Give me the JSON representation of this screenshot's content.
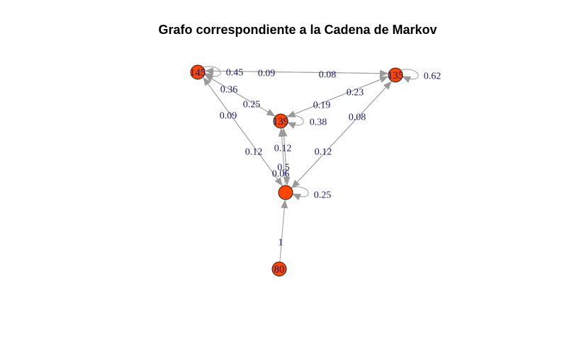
{
  "title": "Grafo correspondiente a la Cadena de Markov",
  "colors": {
    "node_fill": "#ff4500",
    "edge": "#9a9a9a",
    "label": "#1a1a66"
  },
  "nodes": [
    {
      "id": "n145",
      "label": "145"
    },
    {
      "id": "n135",
      "label": "135"
    },
    {
      "id": "n139",
      "label": "139"
    },
    {
      "id": "nc",
      "label": ""
    },
    {
      "id": "n80",
      "label": "80"
    }
  ],
  "edges": [
    {
      "id": "e145-145",
      "from": "n145",
      "to": "n145",
      "label": "0.45"
    },
    {
      "id": "e145-135",
      "from": "n145",
      "to": "n135",
      "label": "0.09"
    },
    {
      "id": "e135-145",
      "from": "n135",
      "to": "n145",
      "label": "0.08"
    },
    {
      "id": "e135-135",
      "from": "n135",
      "to": "n135",
      "label": "0.62"
    },
    {
      "id": "e145-139",
      "from": "n145",
      "to": "n139",
      "label": "0.36"
    },
    {
      "id": "e139-145",
      "from": "n139",
      "to": "n145",
      "label": "0.25"
    },
    {
      "id": "e139-135",
      "from": "n139",
      "to": "n135",
      "label": "0.23"
    },
    {
      "id": "e135-139",
      "from": "n135",
      "to": "n139",
      "label": "0.19"
    },
    {
      "id": "e139-139",
      "from": "n139",
      "to": "n139",
      "label": "0.38"
    },
    {
      "id": "e145-c",
      "from": "n145",
      "to": "nc",
      "label": "0.09"
    },
    {
      "id": "ec-145",
      "from": "nc",
      "to": "n145",
      "label": "0.12"
    },
    {
      "id": "e139-c",
      "from": "n139",
      "to": "nc",
      "label": "0.12"
    },
    {
      "id": "ec-139",
      "from": "nc",
      "to": "n139",
      "label": "0.5"
    },
    {
      "id": "ec-139b",
      "from": "nc",
      "to": "n139",
      "label": "0.06"
    },
    {
      "id": "e135-c",
      "from": "n135",
      "to": "nc",
      "label": "0.08"
    },
    {
      "id": "ec-135",
      "from": "nc",
      "to": "n135",
      "label": "0.12"
    },
    {
      "id": "ec-c",
      "from": "nc",
      "to": "nc",
      "label": "0.25"
    },
    {
      "id": "e80-c",
      "from": "n80",
      "to": "nc",
      "label": "1"
    }
  ]
}
